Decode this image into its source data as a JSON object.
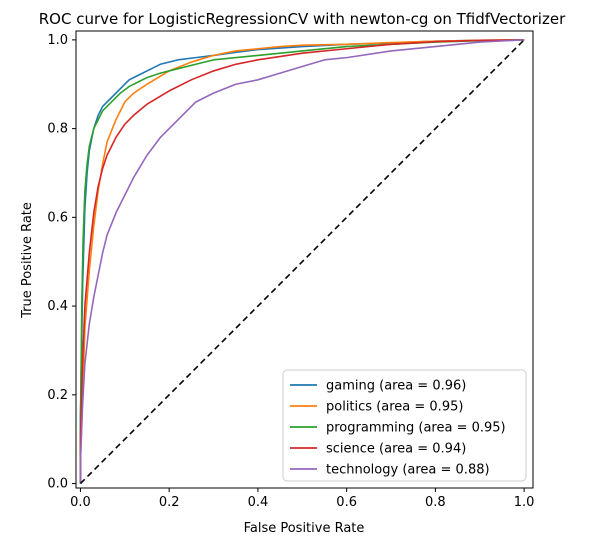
{
  "chart_data": {
    "type": "line",
    "title": "ROC curve for LogisticRegressionCV with newton-cg on TfidfVectorizer",
    "xlabel": "False Positive Rate",
    "ylabel": "True Positive Rate",
    "xlim": [
      -0.01,
      1.02
    ],
    "ylim": [
      -0.01,
      1.02
    ],
    "x_ticks": [
      "0.0",
      "0.2",
      "0.4",
      "0.6",
      "0.8",
      "1.0"
    ],
    "y_ticks": [
      "0.0",
      "0.2",
      "0.4",
      "0.6",
      "0.8",
      "1.0"
    ],
    "legend_placement": "lower-right",
    "grid": false,
    "series": [
      {
        "name": "gaming (area = 0.96)",
        "color": "#1f77b4",
        "x": [
          0,
          0,
          0.005,
          0.01,
          0.015,
          0.02,
          0.03,
          0.04,
          0.05,
          0.07,
          0.09,
          0.11,
          0.13,
          0.15,
          0.18,
          0.22,
          0.26,
          0.3,
          0.35,
          0.4,
          0.5,
          0.6,
          0.7,
          0.8,
          0.9,
          1.0
        ],
        "y": [
          0,
          0.15,
          0.45,
          0.62,
          0.7,
          0.75,
          0.8,
          0.83,
          0.85,
          0.87,
          0.89,
          0.91,
          0.92,
          0.93,
          0.945,
          0.955,
          0.96,
          0.965,
          0.972,
          0.978,
          0.985,
          0.99,
          0.993,
          0.997,
          0.999,
          1.0
        ]
      },
      {
        "name": "politics (area = 0.95)",
        "color": "#ff7f0e",
        "x": [
          0,
          0,
          0.005,
          0.01,
          0.02,
          0.03,
          0.04,
          0.05,
          0.06,
          0.08,
          0.1,
          0.12,
          0.15,
          0.2,
          0.25,
          0.3,
          0.35,
          0.4,
          0.45,
          0.5,
          0.6,
          0.7,
          0.8,
          0.9,
          1.0
        ],
        "y": [
          0,
          0.05,
          0.2,
          0.35,
          0.48,
          0.58,
          0.66,
          0.72,
          0.77,
          0.82,
          0.86,
          0.88,
          0.9,
          0.93,
          0.95,
          0.965,
          0.975,
          0.98,
          0.985,
          0.988,
          0.99,
          0.994,
          0.997,
          0.999,
          1.0
        ]
      },
      {
        "name": "programming (area = 0.95)",
        "color": "#2ca02c",
        "x": [
          0,
          0,
          0.003,
          0.006,
          0.01,
          0.015,
          0.02,
          0.03,
          0.04,
          0.05,
          0.07,
          0.09,
          0.11,
          0.13,
          0.15,
          0.18,
          0.22,
          0.26,
          0.3,
          0.4,
          0.5,
          0.6,
          0.7,
          0.8,
          0.9,
          1.0
        ],
        "y": [
          0,
          0.12,
          0.4,
          0.55,
          0.66,
          0.72,
          0.76,
          0.8,
          0.82,
          0.84,
          0.86,
          0.88,
          0.895,
          0.905,
          0.915,
          0.925,
          0.935,
          0.945,
          0.955,
          0.965,
          0.975,
          0.985,
          0.99,
          0.995,
          0.998,
          1.0
        ]
      },
      {
        "name": "science (area = 0.94)",
        "color": "#d62728",
        "x": [
          0,
          0,
          0.005,
          0.01,
          0.02,
          0.03,
          0.04,
          0.05,
          0.06,
          0.08,
          0.1,
          0.12,
          0.15,
          0.2,
          0.25,
          0.3,
          0.35,
          0.4,
          0.5,
          0.6,
          0.7,
          0.8,
          0.9,
          1.0
        ],
        "y": [
          0,
          0.1,
          0.28,
          0.4,
          0.52,
          0.61,
          0.67,
          0.71,
          0.74,
          0.78,
          0.81,
          0.83,
          0.855,
          0.885,
          0.91,
          0.93,
          0.945,
          0.955,
          0.97,
          0.98,
          0.99,
          0.996,
          0.999,
          1.0
        ]
      },
      {
        "name": "technology (area = 0.88)",
        "color": "#9467bd",
        "x": [
          0,
          0,
          0.005,
          0.01,
          0.02,
          0.03,
          0.04,
          0.05,
          0.06,
          0.08,
          0.1,
          0.12,
          0.15,
          0.18,
          0.22,
          0.26,
          0.3,
          0.35,
          0.4,
          0.45,
          0.5,
          0.55,
          0.6,
          0.7,
          0.8,
          0.9,
          1.0
        ],
        "y": [
          0,
          0.05,
          0.18,
          0.27,
          0.36,
          0.42,
          0.47,
          0.52,
          0.56,
          0.61,
          0.65,
          0.69,
          0.74,
          0.78,
          0.82,
          0.86,
          0.88,
          0.9,
          0.91,
          0.925,
          0.94,
          0.955,
          0.96,
          0.975,
          0.985,
          0.995,
          1.0
        ]
      }
    ],
    "reference_line": {
      "x": [
        0,
        1
      ],
      "y": [
        0,
        1
      ],
      "color": "#000000",
      "style": "dashed"
    }
  }
}
